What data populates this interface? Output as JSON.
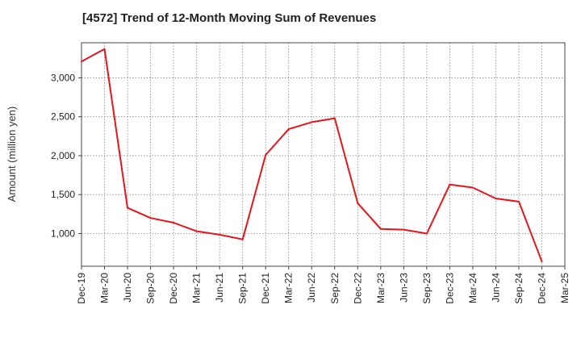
{
  "chart_data": {
    "type": "line",
    "title": "[4572]  Trend of 12-Month Moving Sum of Revenues",
    "xlabel": "",
    "ylabel": "Amount (million yen)",
    "x": [
      "Dec-19",
      "Mar-20",
      "Jun-20",
      "Sep-20",
      "Dec-20",
      "Mar-21",
      "Jun-21",
      "Sep-21",
      "Dec-21",
      "Mar-22",
      "Jun-22",
      "Sep-22",
      "Dec-22",
      "Mar-23",
      "Jun-23",
      "Sep-23",
      "Dec-23",
      "Mar-24",
      "Jun-24",
      "Sep-24",
      "Dec-24",
      "Mar-25"
    ],
    "series": [
      {
        "name": "",
        "color": "#e8141b",
        "values": [
          3210,
          3370,
          1330,
          1200,
          1140,
          1030,
          985,
          925,
          2010,
          2340,
          2430,
          2480,
          1390,
          1060,
          1050,
          1000,
          1630,
          1590,
          1450,
          1410,
          640,
          null
        ]
      }
    ],
    "yticks": [
      1000,
      1500,
      2000,
      2500,
      3000
    ],
    "ytick_labels": [
      "1,000",
      "1,500",
      "2,000",
      "2,500",
      "3,000"
    ],
    "ylim": [
      580,
      3450
    ],
    "grid": true,
    "grid_style": "dotted"
  }
}
